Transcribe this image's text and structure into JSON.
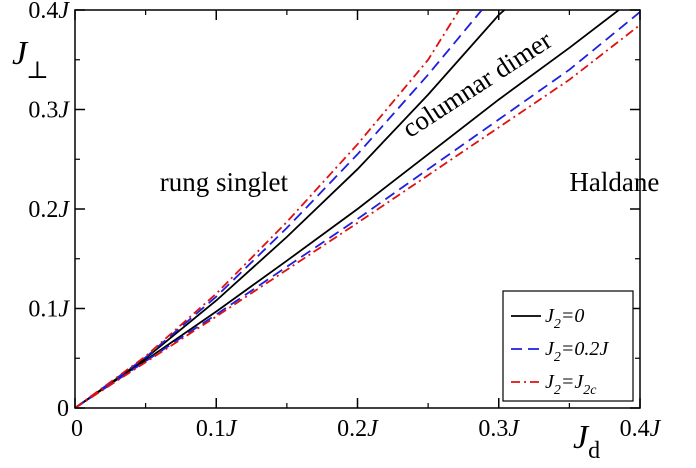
{
  "chart_data": {
    "type": "line",
    "xlabel": "J",
    "xlabel_sub": "d",
    "ylabel": "J",
    "ylabel_sub": "⊥",
    "xlim": [
      0,
      0.4
    ],
    "ylim": [
      0,
      0.4
    ],
    "x_ticks": [
      {
        "value": 0,
        "label": "0",
        "unit": ""
      },
      {
        "value": 0.1,
        "label": "0.1",
        "unit": "J"
      },
      {
        "value": 0.2,
        "label": "0.2",
        "unit": "J"
      },
      {
        "value": 0.3,
        "label": "0.3",
        "unit": "J"
      },
      {
        "value": 0.4,
        "label": "0.4",
        "unit": "J"
      }
    ],
    "y_ticks": [
      {
        "value": 0,
        "label": "0",
        "unit": ""
      },
      {
        "value": 0.1,
        "label": "0.1",
        "unit": "J"
      },
      {
        "value": 0.2,
        "label": "0.2",
        "unit": "J"
      },
      {
        "value": 0.3,
        "label": "0.3",
        "unit": "J"
      },
      {
        "value": 0.4,
        "label": "0.4",
        "unit": "J"
      }
    ],
    "grid": false,
    "legend_position": "bottom-right",
    "regions": [
      {
        "name": "rung-singlet",
        "text": "rung singlet",
        "x": 0.06,
        "y": 0.218
      },
      {
        "name": "haldane",
        "text": "Haldane",
        "x": 0.35,
        "y": 0.218
      },
      {
        "name": "columnar-dimer",
        "text": "columnar dimer",
        "x": 0.288,
        "y": 0.318,
        "angle": -33
      }
    ],
    "series": [
      {
        "key": "j2-0",
        "legend": {
          "main": "J",
          "sub": "2",
          "rest": "=0"
        },
        "color": "#000000",
        "dash": "",
        "lines": [
          [
            [
              0,
              0
            ],
            [
              0.05,
              0.05
            ],
            [
              0.1,
              0.108
            ],
            [
              0.15,
              0.172
            ],
            [
              0.2,
              0.24
            ],
            [
              0.25,
              0.315
            ],
            [
              0.3,
              0.395
            ],
            [
              0.304,
              0.4
            ]
          ],
          [
            [
              0,
              0
            ],
            [
              0.05,
              0.048
            ],
            [
              0.1,
              0.097
            ],
            [
              0.15,
              0.148
            ],
            [
              0.2,
              0.2
            ],
            [
              0.25,
              0.255
            ],
            [
              0.3,
              0.31
            ],
            [
              0.35,
              0.362
            ],
            [
              0.385,
              0.4
            ]
          ]
        ]
      },
      {
        "key": "j2-0.2j",
        "legend": {
          "main": "J",
          "sub": "2",
          "rest": "=0.2J"
        },
        "color": "#1f1fe0",
        "dash": "11,6",
        "lines": [
          [
            [
              0,
              0
            ],
            [
              0.05,
              0.051
            ],
            [
              0.1,
              0.112
            ],
            [
              0.15,
              0.181
            ],
            [
              0.2,
              0.255
            ],
            [
              0.25,
              0.335
            ],
            [
              0.288,
              0.4
            ]
          ],
          [
            [
              0,
              0
            ],
            [
              0.05,
              0.047
            ],
            [
              0.1,
              0.094
            ],
            [
              0.15,
              0.142
            ],
            [
              0.2,
              0.19
            ],
            [
              0.25,
              0.24
            ],
            [
              0.3,
              0.29
            ],
            [
              0.35,
              0.34
            ],
            [
              0.4,
              0.398
            ]
          ]
        ]
      },
      {
        "key": "j2-j2c",
        "legend": {
          "main": "J",
          "sub": "2",
          "rest": "=J",
          "sub2": "2c"
        },
        "color": "#e01010",
        "dash": "9,4,2,4",
        "lines": [
          [
            [
              0,
              0
            ],
            [
              0.05,
              0.052
            ],
            [
              0.1,
              0.115
            ],
            [
              0.15,
              0.187
            ],
            [
              0.2,
              0.265
            ],
            [
              0.25,
              0.35
            ],
            [
              0.272,
              0.4
            ]
          ],
          [
            [
              0,
              0
            ],
            [
              0.05,
              0.046
            ],
            [
              0.1,
              0.092
            ],
            [
              0.15,
              0.139
            ],
            [
              0.2,
              0.186
            ],
            [
              0.25,
              0.234
            ],
            [
              0.3,
              0.282
            ],
            [
              0.35,
              0.33
            ],
            [
              0.4,
              0.385
            ]
          ]
        ]
      }
    ]
  }
}
